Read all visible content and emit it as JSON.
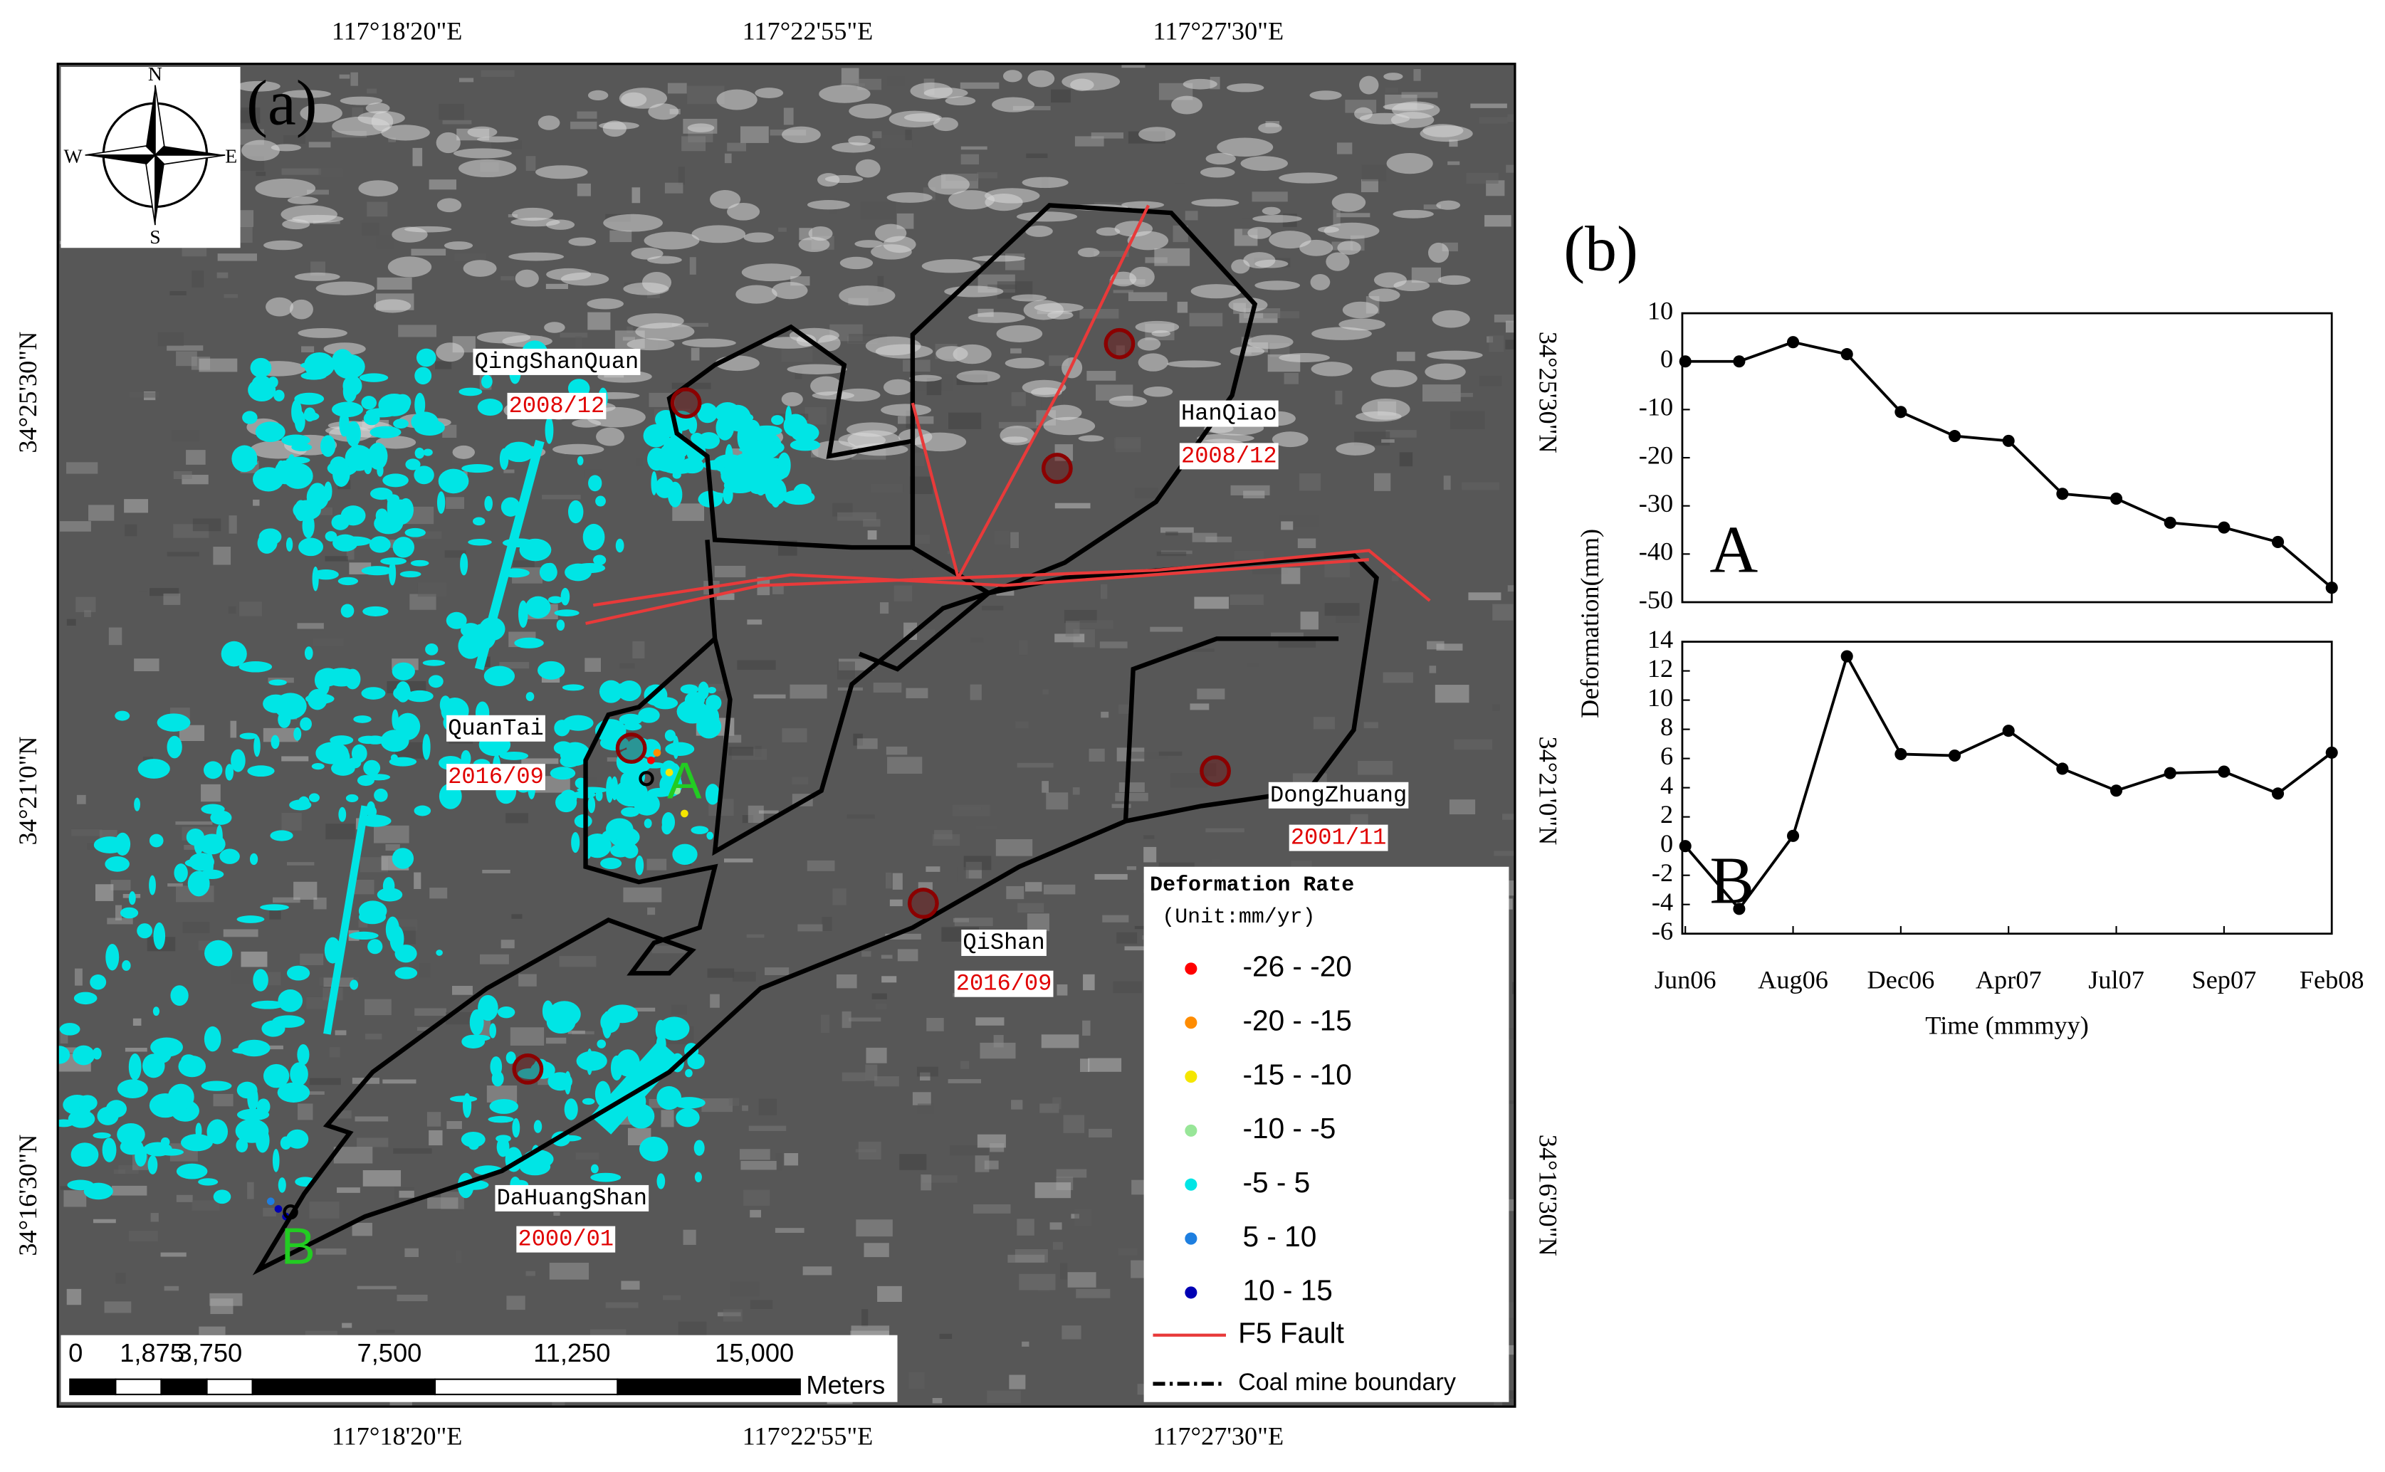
{
  "figure_labels": {
    "a": "(a)",
    "b": "(b)"
  },
  "map": {
    "compass": {
      "n": "N",
      "s": "S",
      "e": "E",
      "w": "W"
    },
    "x_coords": [
      "117°18'20\"E",
      "117°22'55\"E",
      "117°27'30\"E"
    ],
    "y_coords": [
      "34°25'30\"N",
      "34°21'0\"N",
      "34°16'30\"N"
    ],
    "places": [
      {
        "name": "QingShanQuan",
        "date": "2008/12"
      },
      {
        "name": "HanQiao",
        "date": "2008/12"
      },
      {
        "name": "QuanTai",
        "date": "2016/09"
      },
      {
        "name": "DongZhuang",
        "date": "2001/11"
      },
      {
        "name": "QiShan",
        "date": "2016/09"
      },
      {
        "name": "DaHuangShan",
        "date": "2000/01"
      }
    ],
    "points": [
      "A",
      "B"
    ],
    "legend": {
      "title": "Deformation Rate",
      "unit": "(Unit:mm/yr)",
      "classes": [
        {
          "label": "-26 - -20",
          "color": "#ff0000"
        },
        {
          "label": "-20 - -15",
          "color": "#ff8c00"
        },
        {
          "label": "-15 - -10",
          "color": "#f5e600"
        },
        {
          "label": "-10 - -5",
          "color": "#98e698"
        },
        {
          "label": "-5 - 5",
          "color": "#00e5e5"
        },
        {
          "label": "5 - 10",
          "color": "#1e7fe0"
        },
        {
          "label": "10 - 15",
          "color": "#0000b4"
        }
      ],
      "fault": "F5 Fault",
      "boundary": "Coal mine boundary"
    },
    "scale_bar": {
      "labels": [
        "0",
        "1,875",
        "3,750",
        "7,500",
        "11,250",
        "15,000"
      ],
      "unit": "Meters"
    }
  },
  "chart_data": [
    {
      "type": "line",
      "title": "A",
      "values": [
        0,
        0,
        4,
        1.5,
        -10.5,
        -15.5,
        -16.5,
        -27.5,
        -28.5,
        -33.5,
        -34.5,
        -37.5,
        -47
      ],
      "color": "#000000",
      "ylim": [
        -50,
        10
      ],
      "yticks": [
        -50,
        -40,
        -30,
        -20,
        -10,
        0,
        10
      ]
    },
    {
      "type": "line",
      "title": "B",
      "categories": [
        "Jun06",
        null,
        "Aug06",
        null,
        "Dec06",
        null,
        "Apr07",
        null,
        "Jul07",
        null,
        "Sep07",
        null,
        "Feb08"
      ],
      "values": [
        0,
        -4.3,
        0.7,
        13,
        6.3,
        6.2,
        7.9,
        5.3,
        3.8,
        5,
        5.1,
        3.6,
        6.4
      ],
      "color": "#000000",
      "ylim": [
        -6,
        14
      ],
      "yticks": [
        -6,
        -4,
        -2,
        0,
        2,
        4,
        6,
        8,
        10,
        12,
        14
      ],
      "xlabel": "Time (mmmyy)",
      "ylabel": "Deformation(mm)"
    }
  ]
}
